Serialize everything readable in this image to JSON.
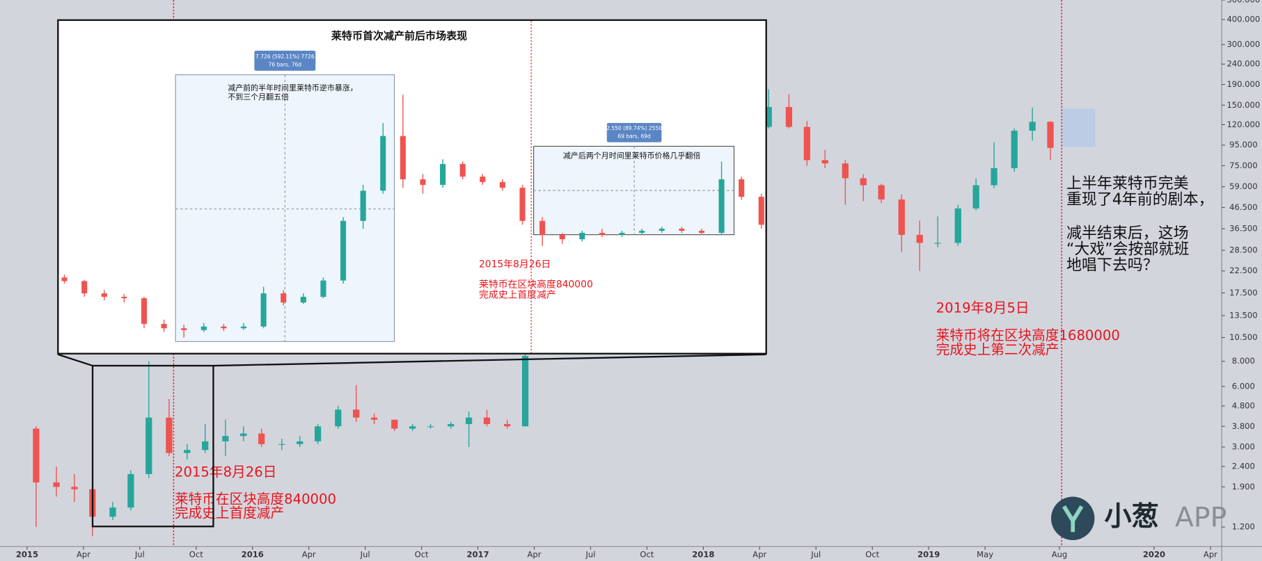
{
  "chart_data": [
    {
      "type": "candlestick",
      "log_scale": true,
      "grid": false,
      "up_color": "#26a69a",
      "down_color": "#ef5350",
      "x": [
        2015.04,
        2015.13,
        2015.21,
        2015.29,
        2015.38,
        2015.46,
        2015.54,
        2015.63,
        2015.71,
        2015.79,
        2015.88,
        2015.96,
        2016.04,
        2016.13,
        2016.21,
        2016.29,
        2016.38,
        2016.46,
        2016.54,
        2016.63,
        2016.71,
        2016.79,
        2016.88,
        2016.96,
        2017.04,
        2017.13,
        2017.21,
        2018.29,
        2018.38,
        2018.46,
        2018.54,
        2018.63,
        2018.71,
        2018.79,
        2018.88,
        2018.96,
        2019.04,
        2019.13,
        2019.21,
        2019.29,
        2019.38,
        2019.46,
        2019.54
      ],
      "open": [
        3.7,
        2.0,
        1.9,
        1.85,
        1.35,
        1.5,
        2.2,
        4.2,
        2.8,
        2.9,
        3.2,
        3.4,
        3.5,
        3.1,
        3.1,
        3.2,
        3.8,
        4.6,
        4.2,
        4.1,
        3.7,
        3.8,
        3.8,
        3.9,
        4.2,
        3.9,
        3.8,
        117,
        147,
        117,
        80,
        77,
        65,
        60,
        51,
        34,
        31,
        31,
        46,
        60,
        73,
        112,
        124
      ],
      "high": [
        3.8,
        2.4,
        2.2,
        1.9,
        1.6,
        2.3,
        8.0,
        5.2,
        3.1,
        3.9,
        4.1,
        3.8,
        3.7,
        3.3,
        3.4,
        3.9,
        4.8,
        6.1,
        4.4,
        4.1,
        3.9,
        3.9,
        4.0,
        4.5,
        4.6,
        4.1,
        9.0,
        180,
        170,
        125,
        90,
        80,
        68,
        61,
        54,
        40,
        42,
        48,
        65,
        98,
        115,
        146,
        125
      ],
      "low": [
        1.2,
        1.7,
        1.6,
        1.08,
        1.3,
        1.45,
        2.1,
        2.7,
        2.6,
        2.8,
        2.7,
        3.2,
        3.0,
        2.9,
        3.0,
        3.1,
        3.7,
        4.0,
        3.9,
        3.6,
        3.6,
        3.7,
        3.7,
        3.0,
        3.8,
        3.7,
        3.8,
        115,
        115,
        75,
        73,
        48,
        50,
        49,
        28,
        22.5,
        29.5,
        30,
        45,
        58,
        70,
        100,
        80
      ],
      "close": [
        2.0,
        1.9,
        1.85,
        1.35,
        1.5,
        2.2,
        4.2,
        2.8,
        2.9,
        3.2,
        3.4,
        3.5,
        3.1,
        3.1,
        3.2,
        3.8,
        4.6,
        4.2,
        4.1,
        3.7,
        3.8,
        3.8,
        3.9,
        4.2,
        3.9,
        3.8,
        8.5,
        147,
        117,
        80,
        77,
        65,
        60,
        51,
        34,
        31,
        31,
        46,
        60,
        73,
        112,
        124,
        92
      ],
      "xlim": [
        2014.88,
        2020.3
      ],
      "ylim": [
        0.96,
        500
      ],
      "xticks": [
        2015,
        {
          "value": 2015.25,
          "label": "Apr"
        },
        {
          "value": 2015.5,
          "label": "Jul"
        },
        {
          "value": 2015.75,
          "label": "Oct"
        },
        2016,
        {
          "value": 2016.25,
          "label": "Apr"
        },
        {
          "value": 2016.5,
          "label": "Jul"
        },
        {
          "value": 2016.75,
          "label": "Oct"
        },
        2017,
        {
          "value": 2017.25,
          "label": "Apr"
        },
        {
          "value": 2017.5,
          "label": "Jul"
        },
        {
          "value": 2017.75,
          "label": "Oct"
        },
        2018,
        {
          "value": 2018.25,
          "label": "Apr"
        },
        {
          "value": 2018.5,
          "label": "Jul"
        },
        {
          "value": 2018.75,
          "label": "Oct"
        },
        2019,
        {
          "value": 2019.25,
          "label": "May"
        },
        {
          "value": 2019.58,
          "label": "Aug"
        },
        2020,
        {
          "value": 2020.25,
          "label": "Apr"
        }
      ],
      "yticks": [
        {
          "value": 1.2,
          "label": "1.200"
        },
        {
          "value": 1.9,
          "label": "1.900"
        },
        {
          "value": 2.4,
          "label": "2.400"
        },
        {
          "value": 3,
          "label": "3.000"
        },
        {
          "value": 3.8,
          "label": "3.800"
        },
        {
          "value": 4.8,
          "label": "4.800"
        },
        {
          "value": 6,
          "label": "6.000"
        },
        {
          "value": 8,
          "label": "8.000"
        },
        {
          "value": 10.5,
          "label": "10.500"
        },
        {
          "value": 13.5,
          "label": "13.500"
        },
        {
          "value": 17.5,
          "label": "17.500"
        },
        {
          "value": 22.5,
          "label": "22.500"
        },
        {
          "value": 28.5,
          "label": "28.500"
        },
        {
          "value": 36.5,
          "label": "36.500"
        },
        {
          "value": 46.5,
          "label": "46.500"
        },
        {
          "value": 59,
          "label": "59.000"
        },
        {
          "value": 75,
          "label": "75.000"
        },
        {
          "value": 95,
          "label": "95.000"
        },
        {
          "value": 120,
          "label": "120.000"
        },
        {
          "value": 150,
          "label": "150.000"
        },
        {
          "value": 190,
          "label": "190.000"
        },
        {
          "value": 240,
          "label": "240.000"
        },
        {
          "value": 300,
          "label": "300.000"
        },
        {
          "value": 400,
          "label": "400.000"
        },
        {
          "value": 500,
          "label": "500.000"
        }
      ],
      "vlines": [
        2015.65,
        2019.59
      ],
      "annotations": {
        "halving_2015": [
          "2015年8月26日",
          "莱特币在区块高度840000",
          "完成史上首度减产"
        ],
        "halving_2019": [
          "2019年8月5日",
          "莱特币将在区块高度1680000",
          "完成史上第二次减产"
        ],
        "commentary": [
          "上半年莱特币完美",
          "重现了4年前的剧本，",
          "减半结束后，这场",
          "“大戏”会按部就班",
          "地唱下去吗？"
        ]
      }
    },
    {
      "type": "candlestick",
      "title": "莱特币首次减产前后市场表现",
      "up_color": "#26a69a",
      "down_color": "#ef5350",
      "open": [
        2.1,
        2.04,
        1.85,
        1.8,
        1.78,
        1.45,
        1.4,
        1.38,
        1.42,
        1.4,
        1.42,
        1.85,
        1.72,
        1.8,
        2.05,
        3.3,
        4.2,
        6.5,
        4.6,
        4.4,
        5.2,
        4.7,
        4.5,
        4.3,
        3.3,
        2.95,
        2.85,
        3.0,
        2.95,
        3.0,
        3.05,
        3.1,
        3.05,
        3.0,
        4.6,
        4.0
      ],
      "high": [
        2.15,
        2.06,
        1.9,
        1.84,
        1.8,
        1.5,
        1.44,
        1.46,
        1.45,
        1.46,
        1.95,
        1.9,
        1.85,
        2.1,
        3.4,
        4.4,
        7.2,
        9.03,
        4.8,
        5.4,
        5.3,
        4.8,
        4.6,
        4.4,
        3.4,
        3.0,
        3.05,
        3.1,
        3.05,
        3.1,
        3.15,
        3.15,
        3.1,
        5.3,
        4.7,
        4.1
      ],
      "low": [
        2.0,
        1.8,
        1.75,
        1.72,
        1.4,
        1.36,
        1.3,
        1.36,
        1.37,
        1.38,
        1.4,
        1.68,
        1.7,
        1.78,
        2.0,
        3.1,
        4.1,
        4.3,
        4.1,
        4.3,
        4.6,
        4.4,
        4.2,
        3.2,
        2.7,
        2.75,
        2.8,
        2.9,
        2.9,
        2.95,
        3.0,
        3.0,
        2.95,
        2.95,
        3.9,
        3.1
      ],
      "close": [
        2.04,
        1.85,
        1.8,
        1.78,
        1.45,
        1.4,
        1.38,
        1.42,
        1.4,
        1.42,
        1.85,
        1.72,
        1.8,
        2.05,
        3.3,
        4.2,
        6.5,
        4.6,
        4.4,
        5.2,
        4.7,
        4.5,
        4.3,
        3.3,
        2.95,
        2.85,
        3.0,
        2.95,
        3.0,
        3.05,
        3.1,
        3.05,
        3.0,
        4.6,
        4.0,
        3.2
      ],
      "measures": [
        {
          "label": "7.726 (592.11%) 7726",
          "bars": "76 bars, 76d",
          "note": [
            "减产前的半年时间里莱特币逆市暴涨，",
            "不到三个月翻五倍"
          ]
        },
        {
          "label": "2.550 (89.74%) 2550",
          "bars": "69 bars, 69d",
          "note": [
            "减产后两个月时间里莱特币价格几乎翻倍"
          ]
        }
      ],
      "annotation": [
        "2015年8月26日",
        "莱特币在区块高度840000",
        "完成史上首度减产"
      ]
    }
  ],
  "logo": {
    "mark": "小葱",
    "suffix": "APP"
  }
}
